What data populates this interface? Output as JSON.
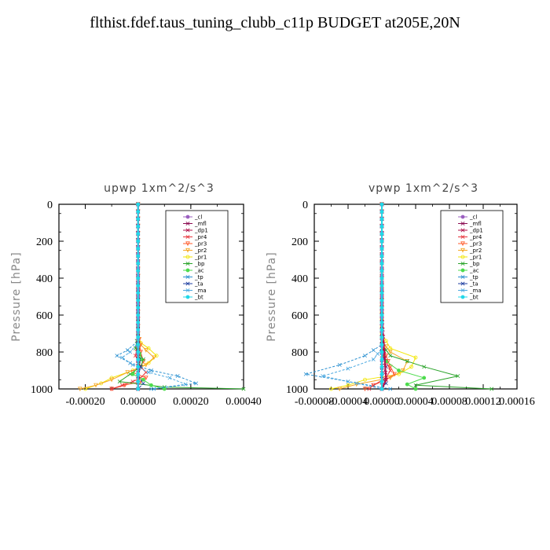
{
  "title": "flthist.fdef.taus_tuning_clubb_c11p  BUDGET at205E,20N",
  "colors": {
    "_cl": "#9b5fc0",
    "_mfl": "#8b0a50",
    "_dp1": "#b0124a",
    "_pr4": "#e8333a",
    "_pr3": "#ff5a2a",
    "_pr2": "#f5a623",
    "_pr1": "#f2e600",
    "_bp": "#29a329",
    "_ac": "#4ddc4d",
    "_tp": "#2a90d0",
    "_ta": "#1f3fa0",
    "_ma": "#4aa8e0",
    "_bt": "#22d8e8"
  },
  "chart_data": [
    {
      "type": "line",
      "title": "upwp   1xm^2/s^3",
      "ylabel": "Pressure [hPa]",
      "xlim": [
        -0.0003,
        0.0004
      ],
      "ylim": [
        1000,
        0
      ],
      "xticks": [
        -0.0002,
        0,
        0.0002,
        0.0004
      ],
      "xtick_labels": [
        "-0.00020",
        "0.00000",
        "0.00020",
        "0.00040"
      ],
      "yticks": [
        0,
        200,
        400,
        600,
        800,
        1000
      ],
      "ytick_labels": [
        "0",
        "200",
        "400",
        "600",
        "800",
        "1000"
      ],
      "legend_position": "top-right",
      "legend": [
        "_cl",
        "_mfl",
        "_dp1",
        "_pr4",
        "_pr3",
        "_pr2",
        "_pr1",
        "_bp",
        "_ac",
        "_tp",
        "_ta",
        "_ma",
        "_bt"
      ],
      "series": [
        {
          "name": "_pr1",
          "x": [
            0,
            0,
            1e-05,
            4e-05,
            7e-05,
            4e-05,
            -2e-05,
            -0.0001,
            -0.00014,
            -0.0002
          ],
          "y": [
            0,
            700,
            750,
            780,
            820,
            860,
            900,
            940,
            970,
            1000
          ]
        },
        {
          "name": "_pr2",
          "x": [
            0,
            0,
            1e-05,
            3e-05,
            6e-05,
            3e-05,
            -4e-05,
            -0.0001,
            -0.00016,
            -0.00022
          ],
          "y": [
            0,
            700,
            760,
            790,
            830,
            870,
            910,
            950,
            980,
            1000
          ]
        },
        {
          "name": "_pr3",
          "x": [
            0,
            0,
            1e-05,
            2e-05,
            1e-05,
            -2e-05,
            3e-05,
            1e-05,
            -5e-05,
            -0.0001
          ],
          "y": [
            0,
            700,
            800,
            850,
            880,
            910,
            940,
            960,
            980,
            1000
          ]
        },
        {
          "name": "_pr4",
          "x": [
            0,
            0,
            -1e-05,
            1e-05,
            3e-05,
            1e-05,
            -2e-05,
            -6e-05,
            -0.0001
          ],
          "y": [
            0,
            750,
            820,
            880,
            910,
            940,
            960,
            980,
            1000
          ]
        },
        {
          "name": "_bp",
          "x": [
            0,
            0,
            -1e-05,
            2e-05,
            1e-05,
            -3e-05,
            -7e-05,
            0.0001,
            0.0004
          ],
          "y": [
            0,
            700,
            780,
            840,
            880,
            920,
            960,
            990,
            1000
          ]
        },
        {
          "name": "_ac",
          "x": [
            0,
            0,
            1e-05,
            0,
            -2e-05,
            2e-05,
            5e-05,
            0.0001
          ],
          "y": [
            0,
            780,
            840,
            880,
            920,
            950,
            980,
            1000
          ]
        },
        {
          "name": "_tp",
          "x": [
            0,
            0,
            -4e-05,
            -8e-05,
            -3e-05,
            5e-05,
            0.00015,
            0.00022,
            6e-05
          ],
          "y": [
            0,
            740,
            790,
            820,
            860,
            900,
            930,
            970,
            1000
          ]
        },
        {
          "name": "_ma",
          "x": [
            0,
            0,
            -3e-05,
            -6e-05,
            -2e-05,
            4e-05,
            0.00012,
            0.00018,
            5e-05
          ],
          "y": [
            0,
            750,
            800,
            830,
            870,
            910,
            940,
            975,
            1000
          ]
        },
        {
          "name": "_ta",
          "x": [
            0,
            0,
            1e-05,
            0,
            2e-05,
            0
          ],
          "y": [
            0,
            800,
            880,
            930,
            970,
            1000
          ]
        },
        {
          "name": "_dp1",
          "x": [
            0,
            0,
            0,
            0
          ],
          "y": [
            0,
            600,
            900,
            1000
          ]
        },
        {
          "name": "_mfl",
          "x": [
            0,
            0,
            0,
            0
          ],
          "y": [
            0,
            500,
            900,
            1000
          ]
        },
        {
          "name": "_cl",
          "x": [
            0,
            0,
            0
          ],
          "y": [
            0,
            500,
            1000
          ]
        },
        {
          "name": "_bt",
          "x": [
            0,
            0
          ],
          "y": [
            0,
            1000
          ]
        }
      ]
    },
    {
      "type": "line",
      "title": "vpwp   1xm^2/s^3",
      "ylabel": "Pressure [hPa]",
      "xlim": [
        -8e-05,
        0.00016
      ],
      "ylim": [
        1000,
        0
      ],
      "xticks": [
        -8e-05,
        -4e-05,
        0,
        4e-05,
        8e-05,
        0.00012,
        0.00016
      ],
      "xtick_labels": [
        "-0.00008",
        "-0.00004",
        "0.00000",
        "0.00004",
        "0.00008",
        "0.00012",
        "0.00016"
      ],
      "yticks": [
        0,
        200,
        400,
        600,
        800,
        1000
      ],
      "ytick_labels": [
        "0",
        "200",
        "400",
        "600",
        "800",
        "1000"
      ],
      "legend_position": "top-right",
      "legend": [
        "_cl",
        "_mfl",
        "_dp1",
        "_pr4",
        "_pr3",
        "_pr2",
        "_pr1",
        "_bp",
        "_ac",
        "_tp",
        "_ta",
        "_ma",
        "_bt"
      ],
      "series": [
        {
          "name": "_pr1",
          "x": [
            0,
            0,
            1e-05,
            4e-05,
            3.5e-05,
            2e-05,
            -2e-05,
            -4e-05,
            -6e-05
          ],
          "y": [
            0,
            700,
            780,
            830,
            880,
            920,
            950,
            980,
            1000
          ]
        },
        {
          "name": "_pr2",
          "x": [
            0,
            0,
            1e-05,
            3e-05,
            2.5e-05,
            1e-05,
            -3e-05,
            -5e-05
          ],
          "y": [
            0,
            740,
            800,
            850,
            900,
            940,
            975,
            1000
          ]
        },
        {
          "name": "_pr3",
          "x": [
            0,
            0,
            5e-06,
            1e-05,
            1.5e-05,
            5e-06,
            -1e-05,
            -2e-05
          ],
          "y": [
            0,
            760,
            820,
            880,
            920,
            950,
            980,
            1000
          ]
        },
        {
          "name": "_pr4",
          "x": [
            0,
            0,
            5e-06,
            1e-05,
            5e-06,
            -1e-05,
            -1.5e-05
          ],
          "y": [
            0,
            780,
            850,
            900,
            940,
            980,
            1000
          ]
        },
        {
          "name": "_bp",
          "x": [
            0,
            0,
            1e-05,
            5e-05,
            9e-05,
            4e-05,
            0.00013
          ],
          "y": [
            0,
            760,
            820,
            880,
            930,
            980,
            1000
          ]
        },
        {
          "name": "_ac",
          "x": [
            0,
            0,
            5e-06,
            2e-05,
            5e-05,
            3e-05,
            4e-05
          ],
          "y": [
            0,
            800,
            850,
            900,
            940,
            975,
            1000
          ]
        },
        {
          "name": "_tp",
          "x": [
            0,
            0,
            -2e-05,
            -5e-05,
            -9e-05,
            -4e-05,
            1e-05
          ],
          "y": [
            0,
            760,
            820,
            870,
            920,
            960,
            1000
          ]
        },
        {
          "name": "_ma",
          "x": [
            0,
            0,
            -1e-05,
            -4e-05,
            -7e-05,
            -3e-05,
            0
          ],
          "y": [
            0,
            780,
            840,
            890,
            930,
            970,
            1000
          ]
        },
        {
          "name": "_ta",
          "x": [
            0,
            0,
            5e-06,
            0,
            5e-06,
            0
          ],
          "y": [
            0,
            800,
            880,
            930,
            970,
            1000
          ]
        },
        {
          "name": "_dp1",
          "x": [
            0,
            0,
            5e-06,
            0
          ],
          "y": [
            0,
            600,
            950,
            1000
          ]
        },
        {
          "name": "_mfl",
          "x": [
            0,
            0,
            0,
            0
          ],
          "y": [
            0,
            500,
            900,
            1000
          ]
        },
        {
          "name": "_cl",
          "x": [
            0,
            0,
            0
          ],
          "y": [
            0,
            500,
            1000
          ]
        },
        {
          "name": "_bt",
          "x": [
            0,
            0
          ],
          "y": [
            0,
            1000
          ]
        }
      ]
    }
  ]
}
